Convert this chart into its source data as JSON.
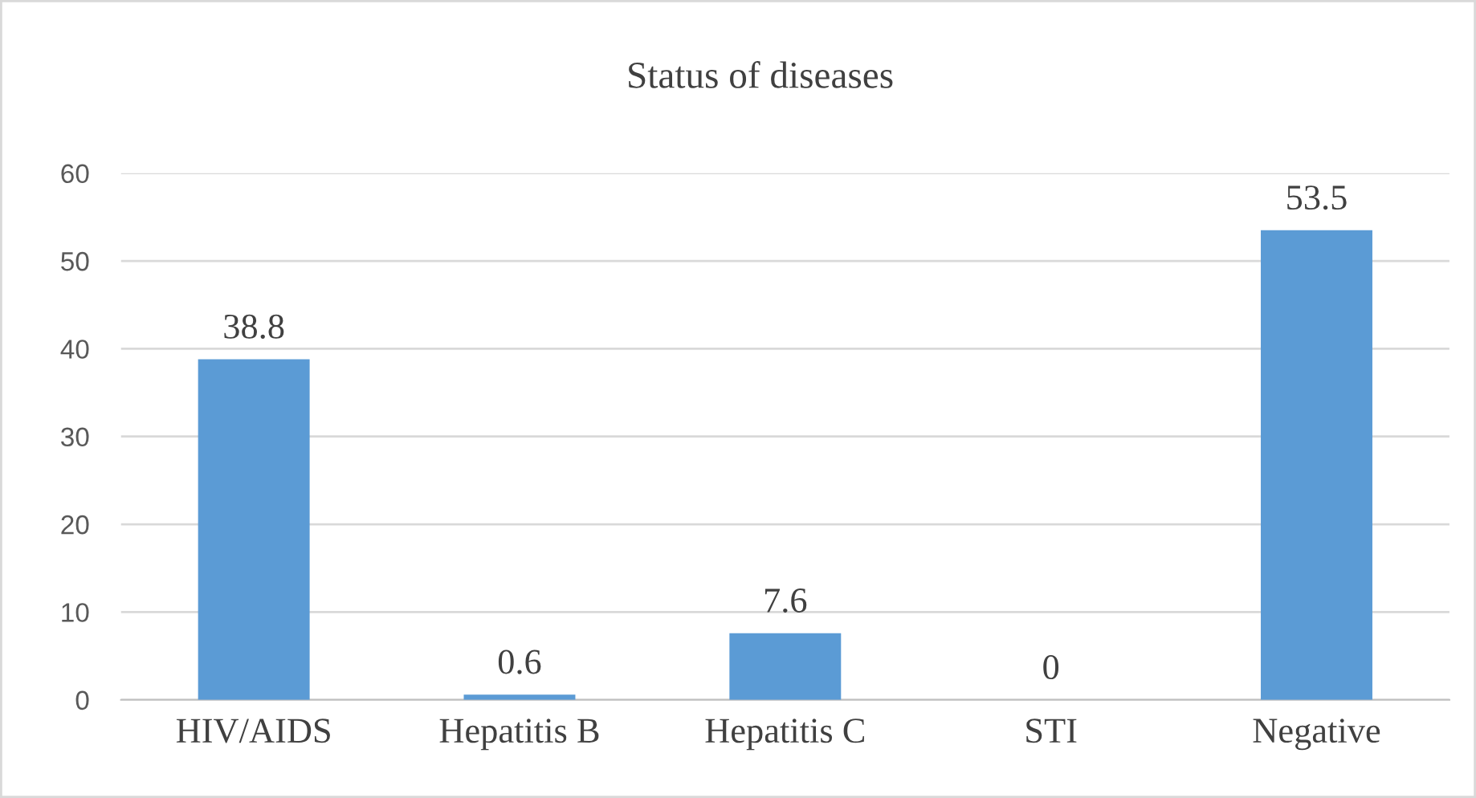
{
  "chart_data": {
    "type": "bar",
    "title": "Status of diseases",
    "categories": [
      "HIV/AIDS",
      "Hepatitis B",
      "Hepatitis C",
      "STI",
      "Negative"
    ],
    "values": [
      38.8,
      0.6,
      7.6,
      0,
      53.5
    ],
    "color": "#5b9bd5",
    "ylim": [
      0,
      60
    ],
    "yticks": [
      0,
      10,
      20,
      30,
      40,
      50,
      60
    ],
    "grid": "y",
    "data_labels": true,
    "legend": false
  }
}
